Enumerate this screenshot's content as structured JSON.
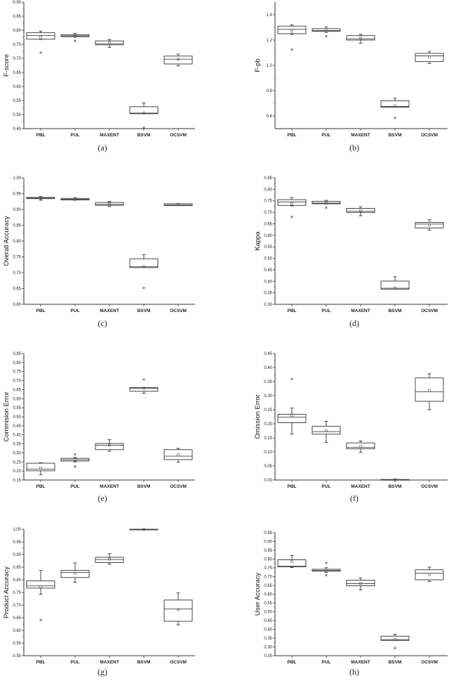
{
  "figure": {
    "categories": [
      "PBL",
      "PUL",
      "MAXENT",
      "BSVM",
      "OCSVM"
    ]
  },
  "chart_data": [
    {
      "id": "a",
      "caption": "(a)",
      "type": "box",
      "ylabel": "F-score",
      "ylim": [
        0.45,
        0.9
      ],
      "yticks": [
        0.45,
        0.5,
        0.55,
        0.6,
        0.65,
        0.7,
        0.75,
        0.8,
        0.85,
        0.9
      ],
      "tick_decimals": 2,
      "categories": [
        "PBL",
        "PUL",
        "MAXENT",
        "BSVM",
        "OCSVM"
      ],
      "boxes": [
        {
          "q1": 0.768,
          "median": 0.781,
          "q3": 0.791,
          "mean": 0.776,
          "whisker_low": 0.767,
          "whisker_high": 0.797,
          "outliers": [
            0.72
          ]
        },
        {
          "q1": 0.777,
          "median": 0.78,
          "q3": 0.784,
          "mean": 0.778,
          "whisker_low": 0.777,
          "whisker_high": 0.789,
          "outliers": [
            0.762
          ]
        },
        {
          "q1": 0.748,
          "median": 0.752,
          "q3": 0.762,
          "mean": 0.755,
          "whisker_low": 0.739,
          "whisker_high": 0.767,
          "outliers": []
        },
        {
          "q1": 0.503,
          "median": 0.505,
          "q3": 0.528,
          "mean": 0.506,
          "whisker_low": 0.503,
          "whisker_high": 0.541,
          "outliers": [
            0.453
          ]
        },
        {
          "q1": 0.68,
          "median": 0.697,
          "q3": 0.708,
          "mean": 0.696,
          "whisker_low": 0.673,
          "whisker_high": 0.715,
          "outliers": []
        }
      ]
    },
    {
      "id": "b",
      "caption": "(b)",
      "type": "box",
      "ylabel": "F-pb",
      "ylim": [
        0.5,
        1.5
      ],
      "yticks": [
        0.6,
        0.8,
        1.0,
        1.2,
        1.4
      ],
      "tick_decimals": 1,
      "categories": [
        "PBL",
        "PUL",
        "MAXENT",
        "BSVM",
        "OCSVM"
      ],
      "boxes": [
        {
          "q1": 1.25,
          "median": 1.285,
          "q3": 1.31,
          "mean": 1.27,
          "whisker_low": 1.245,
          "whisker_high": 1.32,
          "outliers": [
            1.125
          ]
        },
        {
          "q1": 1.27,
          "median": 1.275,
          "q3": 1.29,
          "mean": 1.28,
          "whisker_low": 1.26,
          "whisker_high": 1.305,
          "outliers": [
            1.23
          ]
        },
        {
          "q1": 1.2,
          "median": 1.21,
          "q3": 1.235,
          "mean": 1.215,
          "whisker_low": 1.175,
          "whisker_high": 1.245,
          "outliers": []
        },
        {
          "q1": 0.67,
          "median": 0.675,
          "q3": 0.72,
          "mean": 0.68,
          "whisker_low": 0.67,
          "whisker_high": 0.74,
          "outliers": [
            0.585
          ]
        },
        {
          "q1": 1.03,
          "median": 1.075,
          "q3": 1.095,
          "mean": 1.065,
          "whisker_low": 1.015,
          "whisker_high": 1.11,
          "outliers": []
        }
      ]
    },
    {
      "id": "c",
      "caption": "(c)",
      "type": "box",
      "ylabel": "Overall Accuracy",
      "ylim": [
        0.6,
        1.0
      ],
      "yticks": [
        0.6,
        0.65,
        0.7,
        0.75,
        0.8,
        0.85,
        0.9,
        0.95,
        1.0
      ],
      "tick_decimals": 2,
      "categories": [
        "PBL",
        "PUL",
        "MAXENT",
        "BSVM",
        "OCSVM"
      ],
      "boxes": [
        {
          "q1": 0.934,
          "median": 0.936,
          "q3": 0.938,
          "mean": 0.935,
          "whisker_low": 0.929,
          "whisker_high": 0.941,
          "outliers": []
        },
        {
          "q1": 0.93,
          "median": 0.932,
          "q3": 0.935,
          "mean": 0.932,
          "whisker_low": 0.929,
          "whisker_high": 0.937,
          "outliers": []
        },
        {
          "q1": 0.913,
          "median": 0.916,
          "q3": 0.922,
          "mean": 0.917,
          "whisker_low": 0.909,
          "whisker_high": 0.925,
          "outliers": []
        },
        {
          "q1": 0.716,
          "median": 0.719,
          "q3": 0.744,
          "mean": 0.719,
          "whisker_low": 0.716,
          "whisker_high": 0.757,
          "outliers": [
            0.652
          ]
        },
        {
          "q1": 0.912,
          "median": 0.914,
          "q3": 0.918,
          "mean": 0.915,
          "whisker_low": 0.912,
          "whisker_high": 0.919,
          "outliers": []
        }
      ]
    },
    {
      "id": "d",
      "caption": "(d)",
      "type": "box",
      "ylabel": "Kappa",
      "ylim": [
        0.3,
        0.85
      ],
      "yticks": [
        0.3,
        0.35,
        0.4,
        0.45,
        0.5,
        0.55,
        0.6,
        0.65,
        0.7,
        0.75,
        0.8,
        0.85
      ],
      "tick_decimals": 2,
      "categories": [
        "PBL",
        "PUL",
        "MAXENT",
        "BSVM",
        "OCSVM"
      ],
      "boxes": [
        {
          "q1": 0.73,
          "median": 0.745,
          "q3": 0.755,
          "mean": 0.738,
          "whisker_low": 0.728,
          "whisker_high": 0.764,
          "outliers": [
            0.68
          ]
        },
        {
          "q1": 0.737,
          "median": 0.74,
          "q3": 0.748,
          "mean": 0.74,
          "whisker_low": 0.737,
          "whisker_high": 0.752,
          "outliers": [
            0.72
          ]
        },
        {
          "q1": 0.699,
          "median": 0.705,
          "q3": 0.717,
          "mean": 0.707,
          "whisker_low": 0.685,
          "whisker_high": 0.724,
          "outliers": []
        },
        {
          "q1": 0.366,
          "median": 0.37,
          "q3": 0.401,
          "mean": 0.371,
          "whisker_low": 0.366,
          "whisker_high": 0.42,
          "outliers": []
        },
        {
          "q1": 0.632,
          "median": 0.649,
          "q3": 0.656,
          "mean": 0.645,
          "whisker_low": 0.622,
          "whisker_high": 0.668,
          "outliers": []
        }
      ]
    },
    {
      "id": "e",
      "caption": "(e)",
      "type": "box",
      "ylabel": "Commision Error",
      "ylim": [
        0.15,
        0.85
      ],
      "yticks": [
        0.15,
        0.2,
        0.25,
        0.3,
        0.35,
        0.4,
        0.45,
        0.5,
        0.55,
        0.6,
        0.65,
        0.7,
        0.75,
        0.8,
        0.85
      ],
      "tick_decimals": 2,
      "categories": [
        "PBL",
        "PUL",
        "MAXENT",
        "BSVM",
        "OCSVM"
      ],
      "boxes": [
        {
          "q1": 0.201,
          "median": 0.21,
          "q3": 0.243,
          "mean": 0.217,
          "whisker_low": 0.18,
          "whisker_high": 0.246,
          "outliers": []
        },
        {
          "q1": 0.255,
          "median": 0.262,
          "q3": 0.27,
          "mean": 0.263,
          "whisker_low": 0.25,
          "whisker_high": 0.275,
          "outliers": [
            0.292,
            0.224
          ]
        },
        {
          "q1": 0.318,
          "median": 0.342,
          "q3": 0.352,
          "mean": 0.343,
          "whisker_low": 0.309,
          "whisker_high": 0.373,
          "outliers": []
        },
        {
          "q1": 0.641,
          "median": 0.658,
          "q3": 0.662,
          "mean": 0.658,
          "whisker_low": 0.63,
          "whisker_high": 0.662,
          "outliers": [
            0.706
          ]
        },
        {
          "q1": 0.263,
          "median": 0.282,
          "q3": 0.318,
          "mean": 0.289,
          "whisker_low": 0.248,
          "whisker_high": 0.325,
          "outliers": []
        }
      ]
    },
    {
      "id": "f",
      "caption": "(f)",
      "type": "box",
      "ylabel": "Omission Error",
      "ylim": [
        0.0,
        0.45
      ],
      "yticks": [
        0.0,
        0.05,
        0.1,
        0.15,
        0.2,
        0.25,
        0.3,
        0.35,
        0.4,
        0.45
      ],
      "tick_decimals": 2,
      "categories": [
        "PBL",
        "PUL",
        "MAXENT",
        "BSVM",
        "OCSVM"
      ],
      "boxes": [
        {
          "q1": 0.204,
          "median": 0.224,
          "q3": 0.234,
          "mean": 0.229,
          "whisker_low": 0.163,
          "whisker_high": 0.256,
          "outliers": [
            0.359
          ]
        },
        {
          "q1": 0.163,
          "median": 0.172,
          "q3": 0.191,
          "mean": 0.175,
          "whisker_low": 0.134,
          "whisker_high": 0.209,
          "outliers": []
        },
        {
          "q1": 0.111,
          "median": 0.116,
          "q3": 0.132,
          "mean": 0.119,
          "whisker_low": 0.098,
          "whisker_high": 0.139,
          "outliers": []
        },
        {
          "q1": 0.001,
          "median": 0.001,
          "q3": 0.002,
          "mean": 0.001,
          "whisker_low": 0.0,
          "whisker_high": 0.002,
          "outliers": []
        },
        {
          "q1": 0.28,
          "median": 0.314,
          "q3": 0.363,
          "mean": 0.318,
          "whisker_low": 0.25,
          "whisker_high": 0.378,
          "outliers": []
        }
      ]
    },
    {
      "id": "g",
      "caption": "(g)",
      "type": "box",
      "ylabel": "Product Accuracy",
      "ylim": [
        0.5,
        1.0
      ],
      "yticks": [
        0.5,
        0.55,
        0.6,
        0.65,
        0.7,
        0.75,
        0.8,
        0.85,
        0.9,
        0.95,
        1.0
      ],
      "tick_decimals": 2,
      "categories": [
        "PBL",
        "PUL",
        "MAXENT",
        "BSVM",
        "OCSVM"
      ],
      "boxes": [
        {
          "q1": 0.767,
          "median": 0.776,
          "q3": 0.796,
          "mean": 0.772,
          "whisker_low": 0.743,
          "whisker_high": 0.837,
          "outliers": [
            0.641
          ]
        },
        {
          "q1": 0.809,
          "median": 0.829,
          "q3": 0.837,
          "mean": 0.826,
          "whisker_low": 0.79,
          "whisker_high": 0.867,
          "outliers": []
        },
        {
          "q1": 0.868,
          "median": 0.88,
          "q3": 0.889,
          "mean": 0.882,
          "whisker_low": 0.862,
          "whisker_high": 0.903,
          "outliers": []
        },
        {
          "q1": 0.999,
          "median": 1.0,
          "q3": 1.0,
          "mean": 0.999,
          "whisker_low": 0.999,
          "whisker_high": 1.0,
          "outliers": []
        },
        {
          "q1": 0.636,
          "median": 0.685,
          "q3": 0.72,
          "mean": 0.682,
          "whisker_low": 0.622,
          "whisker_high": 0.748,
          "outliers": []
        }
      ]
    },
    {
      "id": "h",
      "caption": "(h)",
      "type": "box",
      "ylabel": "User Accuracy",
      "ylim": [
        0.25,
        0.95
      ],
      "yticks": [
        0.25,
        0.3,
        0.35,
        0.4,
        0.45,
        0.5,
        0.55,
        0.6,
        0.65,
        0.7,
        0.75,
        0.8,
        0.85,
        0.9,
        0.95
      ],
      "tick_decimals": 2,
      "categories": [
        "PBL",
        "PUL",
        "MAXENT",
        "BSVM",
        "OCSVM"
      ],
      "boxes": [
        {
          "q1": 0.756,
          "median": 0.759,
          "q3": 0.796,
          "mean": 0.786,
          "whisker_low": 0.752,
          "whisker_high": 0.82,
          "outliers": []
        },
        {
          "q1": 0.731,
          "median": 0.735,
          "q3": 0.742,
          "mean": 0.736,
          "whisker_low": 0.723,
          "whisker_high": 0.751,
          "outliers": [
            0.778,
            0.708
          ]
        },
        {
          "q1": 0.648,
          "median": 0.66,
          "q3": 0.68,
          "mean": 0.662,
          "whisker_low": 0.625,
          "whisker_high": 0.693,
          "outliers": []
        },
        {
          "q1": 0.337,
          "median": 0.341,
          "q3": 0.361,
          "mean": 0.343,
          "whisker_low": 0.337,
          "whisker_high": 0.372,
          "outliers": [
            0.293
          ]
        },
        {
          "q1": 0.682,
          "median": 0.719,
          "q3": 0.739,
          "mean": 0.712,
          "whisker_low": 0.673,
          "whisker_high": 0.754,
          "outliers": []
        }
      ]
    }
  ]
}
